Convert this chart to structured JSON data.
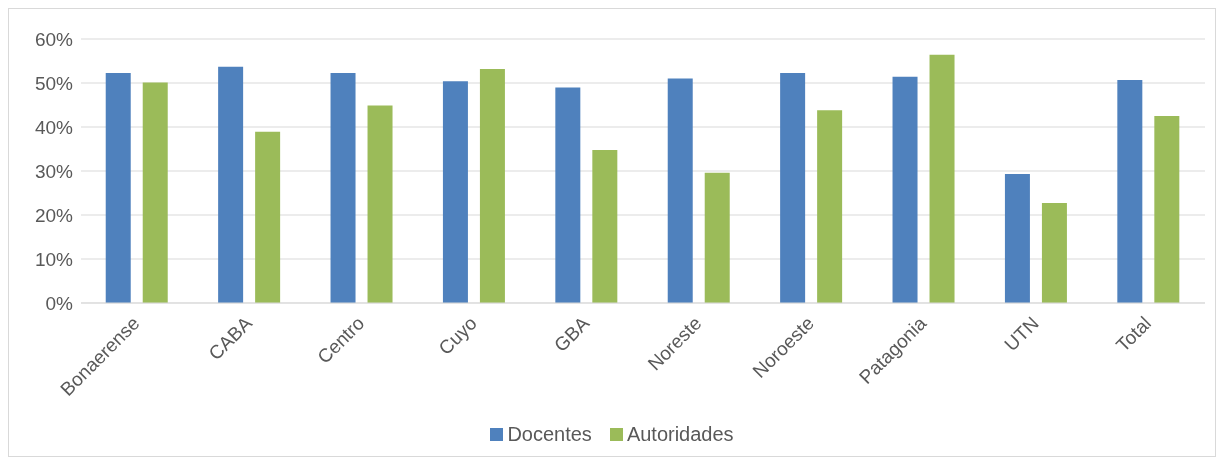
{
  "chart_data": {
    "type": "bar",
    "categories": [
      "Bonaerense",
      "CABA",
      "Centro",
      "Cuyo",
      "GBA",
      "Noreste",
      "Noroeste",
      "Patagonia",
      "UTN",
      "Total"
    ],
    "series": [
      {
        "name": "Docentes",
        "color": "#4f81bd",
        "values": [
          52.3,
          53.7,
          52.3,
          50.4,
          49,
          51,
          52.3,
          51.4,
          29.3,
          50.7
        ]
      },
      {
        "name": "Autoridades",
        "color": "#9bbb59",
        "values": [
          50.1,
          38.9,
          44.9,
          53.2,
          34.8,
          29.6,
          43.8,
          56.4,
          22.7,
          42.5
        ]
      }
    ],
    "ylim": [
      0,
      60
    ],
    "yticks": [
      {
        "value": 0,
        "label": "0%"
      },
      {
        "value": 10,
        "label": "10%"
      },
      {
        "value": 20,
        "label": "20%"
      },
      {
        "value": 30,
        "label": "30%"
      },
      {
        "value": 40,
        "label": "40%"
      },
      {
        "value": 50,
        "label": "50%"
      },
      {
        "value": 60,
        "label": "60%"
      }
    ],
    "grid": "y",
    "legend": "bottom"
  }
}
